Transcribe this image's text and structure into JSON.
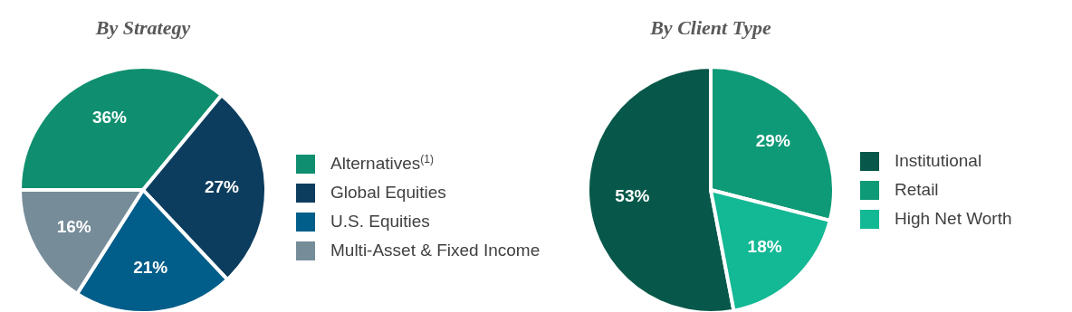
{
  "chart_data": [
    {
      "type": "pie",
      "title": "By Strategy",
      "categories": [
        "Alternatives$^{(1)}$",
        "Global Equities",
        "U.S. Equities",
        "Multi-Asset & Fixed Income"
      ],
      "values": [
        36,
        27,
        21,
        16
      ],
      "value_labels": [
        "36%",
        "27%",
        "21%",
        "16%"
      ],
      "colors": [
        "#0f8f6f",
        "#0c3d5e",
        "#015d89",
        "#778c99"
      ],
      "legend": "right"
    },
    {
      "type": "pie",
      "title": "By Client Type",
      "categories": [
        "Institutional",
        "Retail",
        "High Net Worth"
      ],
      "values": [
        53,
        29,
        18
      ],
      "value_labels": [
        "53%",
        "29%",
        "18%"
      ],
      "colors": [
        "#07584a",
        "#0f9a77",
        "#13b894"
      ],
      "legend": "right"
    }
  ]
}
